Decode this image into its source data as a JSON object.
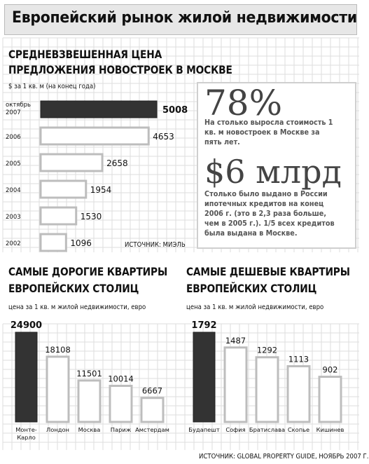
{
  "banner_title": "Европейский рынок жилой недвижимости",
  "moscow": {
    "title_line1": "СРЕДНЕВЗВЕШЕННАЯ ЦЕНА",
    "title_line2": "ПРЕДЛОЖЕНИЯ НОВОСТРОЕК В МОСКВЕ",
    "unit": "$ за 1 кв. м (на конец года)",
    "source": "ИСТОЧНИК: МИЭЛЬ"
  },
  "stats": {
    "stat1_value": "78%",
    "stat1_text": "На столько выросла стоимость 1 кв. м новостроек в Москве за пять лет.",
    "stat2_value": "$6 млрд",
    "stat2_text": "Столько было выдано в России ипотечных кредитов на конец 2006 г. (это в 2,3 раза больше, чем в 2005 г.). 1/5 всех кредитов была выдана в Москве."
  },
  "expensive": {
    "title_line1": "САМЫЕ ДОРОГИЕ КВАРТИРЫ",
    "title_line2": "ЕВРОПЕЙСКИХ СТОЛИЦ",
    "unit": "цена за 1 кв. м жилой недвижимости, евро"
  },
  "cheap": {
    "title_line1": "САМЫЕ ДЕШЕВЫЕ КВАРТИРЫ",
    "title_line2": "ЕВРОПЕЙСКИХ СТОЛИЦ",
    "unit": "цена за 1 кв. м жилой недвижимости, евро"
  },
  "bottom_source": "ИСТОЧНИК: GLOBAL PROPERTY GUIDE, НОЯБРЬ 2007 Г.",
  "colors": {
    "dark_bar": "#333333",
    "bar_outline": "#bdbdbd",
    "grid": "#dddddd",
    "banner": "#e7e7e7"
  },
  "chart_data": [
    {
      "type": "bar",
      "orientation": "horizontal",
      "title": "СРЕДНЕВЗВЕШЕННАЯ ЦЕНА ПРЕДЛОЖЕНИЯ НОВОСТРОЕК В МОСКВЕ",
      "ylabel": "$ за 1 кв. м (на конец года)",
      "categories": [
        [
          "октябрь",
          "2007"
        ],
        [
          "2006"
        ],
        [
          "2005"
        ],
        [
          "2004"
        ],
        [
          "2003"
        ],
        [
          "2002"
        ]
      ],
      "values": [
        5008,
        4653,
        2658,
        1954,
        1530,
        1096
      ],
      "highlight_index": 0
    },
    {
      "type": "bar",
      "title": "САМЫЕ ДОРОГИЕ КВАРТИРЫ ЕВРОПЕЙСКИХ СТОЛИЦ",
      "ylabel": "цена за 1 кв. м жилой недвижимости, евро",
      "categories": [
        [
          "Монте-",
          "Карло"
        ],
        [
          "Лондон"
        ],
        [
          "Москва"
        ],
        [
          "Париж"
        ],
        [
          "Амстердам"
        ]
      ],
      "values": [
        24900,
        18108,
        11501,
        10014,
        6667
      ],
      "highlight_index": 0
    },
    {
      "type": "bar",
      "title": "САМЫЕ ДЕШЕВЫЕ КВАРТИРЫ ЕВРОПЕЙСКИХ СТОЛИЦ",
      "ylabel": "цена за 1 кв. м жилой недвижимости, евро",
      "categories": [
        [
          "Будапешт"
        ],
        [
          "София"
        ],
        [
          "Братислава"
        ],
        [
          "Скопье"
        ],
        [
          "Кишинев"
        ]
      ],
      "values": [
        1792,
        1487,
        1292,
        1113,
        902
      ],
      "highlight_index": 0
    }
  ]
}
